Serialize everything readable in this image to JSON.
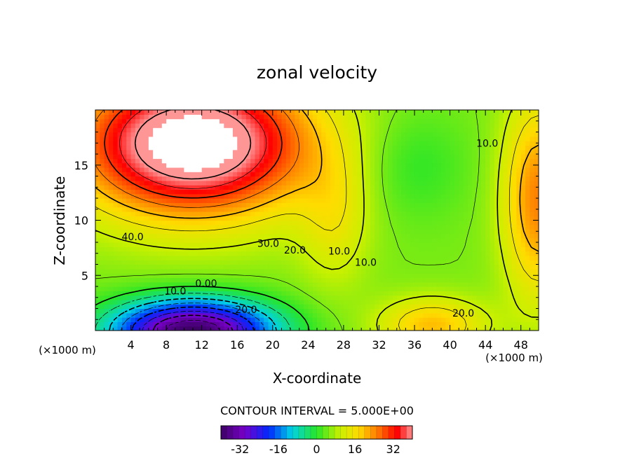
{
  "chart_data": {
    "type": "heatmap",
    "title": "zonal velocity",
    "xlabel": "X-coordinate",
    "ylabel": "Z-coordinate",
    "x_unit": "(×1000 m)",
    "z_unit": "(×1000 m)",
    "xlim": [
      0,
      50
    ],
    "zlim": [
      0,
      20
    ],
    "x_ticks": [
      "4",
      "8",
      "12",
      "16",
      "20",
      "24",
      "28",
      "32",
      "36",
      "40",
      "44",
      "48"
    ],
    "z_ticks": [
      "5",
      "10",
      "15"
    ],
    "contour_interval_text": "CONTOUR INTERVAL = 5.000E+00",
    "colorbar": {
      "range": [
        -40,
        40
      ],
      "ticks": [
        "-32",
        "-16",
        "0",
        "16",
        "32"
      ],
      "tick_values": [
        -32,
        -16,
        0,
        16,
        32
      ],
      "levels": 32
    },
    "contour_labels": [
      {
        "text": "40.0",
        "x": 4.2,
        "z": 8.5
      },
      {
        "text": "30.0",
        "x": 19.5,
        "z": 7.9
      },
      {
        "text": "20.0",
        "x": 22.5,
        "z": 7.3
      },
      {
        "text": "10.0",
        "x": 27.5,
        "z": 7.2
      },
      {
        "text": "10.0",
        "x": 30.5,
        "z": 6.2
      },
      {
        "text": "0.00",
        "x": 12.5,
        "z": 4.3
      },
      {
        "text": "10.0",
        "x": 9.0,
        "z": 3.6
      },
      {
        "text": "20.0",
        "x": 17.0,
        "z": 1.9
      },
      {
        "text": "20.0",
        "x": 41.5,
        "z": 1.6
      },
      {
        "text": "10.0",
        "x": 44.2,
        "z": 17.0
      }
    ]
  }
}
